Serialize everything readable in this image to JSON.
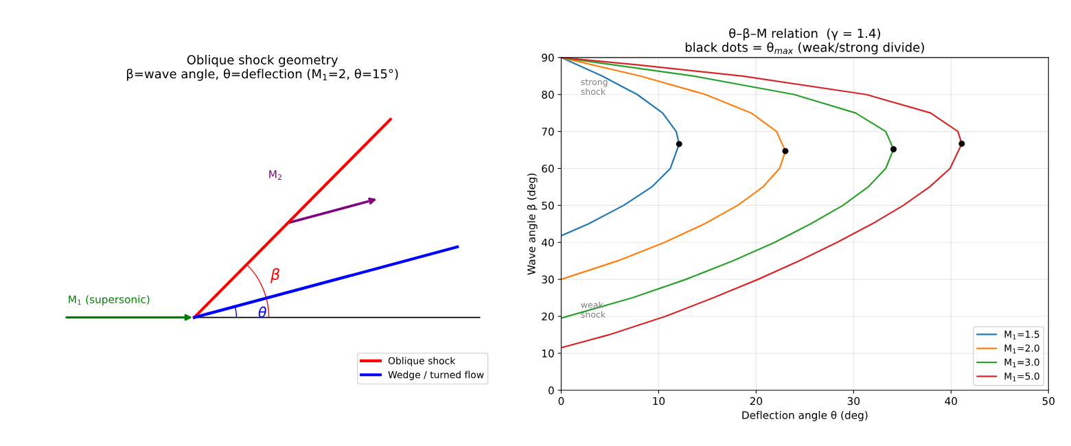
{
  "chart_data": [
    {
      "type": "other",
      "title": "Oblique shock geometry\nβ=wave angle, θ=deflection (M$_{1}$=2, θ=15°)",
      "annotations": [
        "M$_{1}$ (supersonic)",
        "M$_{2}$",
        "β",
        "θ"
      ],
      "series": [
        {
          "name": "Oblique shock",
          "color": "#ff0000"
        },
        {
          "name": "Wedge / turned flow",
          "color": "#0000ff"
        }
      ],
      "legend": "bottom right"
    },
    {
      "type": "line",
      "title": "θ–β–M relation  (γ = 1.4)\nblack dots = θ$_{max}$ (weak/strong divide)",
      "xlabel": "Deflection angle θ (deg)",
      "ylabel": "Wave angle β (deg)",
      "xlim": [
        0,
        50
      ],
      "ylim": [
        0,
        90
      ],
      "xticks": [
        0,
        10,
        20,
        30,
        40,
        50
      ],
      "yticks": [
        0,
        10,
        20,
        30,
        40,
        50,
        60,
        70,
        80,
        90
      ],
      "grid": true,
      "legend": "bottom right",
      "annotations": [
        "strong\nshock",
        "weak\nshock"
      ],
      "series": [
        {
          "name": "M$_{1}$=1.5",
          "color": "#1f77b4",
          "x": [
            0,
            2.8,
            6.4,
            9.3,
            11.2,
            12.1,
            11.8,
            10.4,
            7.8,
            4.2,
            0
          ],
          "values": [
            41.8,
            45,
            50,
            55,
            60,
            66.6,
            70,
            75,
            80,
            85,
            90
          ]
        },
        {
          "name": "M$_{1}$=2.0",
          "color": "#ff7f0e",
          "x": [
            0,
            5.8,
            10.6,
            14.7,
            18.1,
            20.7,
            22.4,
            23.0,
            22.1,
            19.5,
            14.8,
            8.1,
            0
          ],
          "values": [
            30,
            35,
            40,
            45,
            50,
            55,
            60,
            64.7,
            70,
            75,
            80,
            85,
            90
          ]
        },
        {
          "name": "M$_{1}$=3.0",
          "color": "#2ca02c",
          "x": [
            0,
            7.3,
            12.8,
            17.6,
            21.9,
            25.6,
            28.9,
            31.5,
            33.3,
            34.1,
            33.3,
            30.2,
            23.9,
            13.6,
            0
          ],
          "values": [
            19.5,
            25,
            30,
            35,
            40,
            45,
            50,
            55,
            60,
            65.2,
            70,
            75,
            80,
            85,
            90
          ]
        },
        {
          "name": "M$_{1}$=5.0",
          "color": "#d62728",
          "x": [
            0,
            4.9,
            10.7,
            15.6,
            20.2,
            24.4,
            28.3,
            31.9,
            35.1,
            37.8,
            39.9,
            41.1,
            40.7,
            37.9,
            31.3,
            18.6,
            7.9,
            0
          ],
          "values": [
            11.5,
            15,
            20,
            25,
            30,
            35,
            40,
            45,
            50,
            55,
            60,
            66.7,
            70,
            75,
            80,
            85,
            88,
            90
          ]
        },
        {
          "type": "scatter",
          "color": "#000000",
          "marker": "circle",
          "x": [
            12.1,
            23.0,
            34.1,
            41.1
          ],
          "values": [
            66.6,
            64.7,
            65.2,
            66.7
          ]
        }
      ]
    }
  ]
}
